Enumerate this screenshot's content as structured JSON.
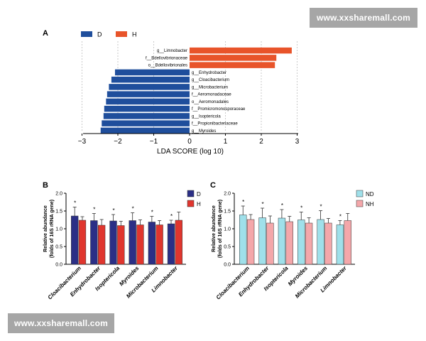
{
  "watermark_top": "www.xxsharemall.com",
  "watermark_bottom": "www.xxsharemall.com",
  "colors": {
    "D": "#1f4e9c",
    "H": "#e8542a",
    "Dbar": "#2b2f86",
    "Hbar": "#e0362e",
    "ND": "#9fe0ea",
    "NH": "#f4a7aa"
  },
  "chart_data": [
    {
      "panel": "A",
      "type": "bar",
      "orientation": "horizontal",
      "legend": [
        "D",
        "H"
      ],
      "xlabel": "LDA SCORE (log 10)",
      "xlim": [
        -3,
        3
      ],
      "xticks": [
        "−3",
        "−2",
        "−1",
        "0",
        "1",
        "2",
        "3"
      ],
      "categories": [
        "g__Limnobacter",
        "f__Bdellovibrionaceae",
        "o__Bdellovibrionales",
        "g__Enhydrobacter",
        "g__Cloacibacterium",
        "g__Microbacterium",
        "f__Aeromonadaceae",
        "o__Aeromonadales",
        "f__Promicromonosporaceae",
        "g__Isoptericola",
        "f__Propionibacteriaceae",
        "g__Myroides"
      ],
      "values": [
        2.85,
        2.42,
        2.38,
        -2.08,
        -2.18,
        -2.25,
        -2.3,
        -2.33,
        -2.38,
        -2.4,
        -2.45,
        -2.48
      ],
      "groups": [
        "H",
        "H",
        "H",
        "D",
        "D",
        "D",
        "D",
        "D",
        "D",
        "D",
        "D",
        "D"
      ]
    },
    {
      "panel": "B",
      "type": "bar",
      "ylabel_line1": "Relative abundance",
      "ylabel_line2": "(folds of 16S rRNA gene)",
      "ylim": [
        0,
        2.0
      ],
      "yticks": [
        "0.0",
        "0.5",
        "1.0",
        "1.5",
        "2.0"
      ],
      "categories": [
        "Cloacibacterium",
        "Enhydrobacter",
        "Isoptericola",
        "Myroides",
        "Microbacterium",
        "Limnobacter"
      ],
      "series": [
        {
          "name": "D",
          "values": [
            1.36,
            1.23,
            1.22,
            1.23,
            1.19,
            1.14
          ],
          "errors": [
            0.25,
            0.2,
            0.18,
            0.22,
            0.16,
            0.1
          ]
        },
        {
          "name": "H",
          "values": [
            1.24,
            1.1,
            1.09,
            1.11,
            1.11,
            1.24
          ],
          "errors": [
            0.1,
            0.16,
            0.12,
            0.14,
            0.12,
            0.23
          ]
        }
      ],
      "significance": [
        "*",
        "*",
        "*",
        "*",
        "*",
        "*"
      ]
    },
    {
      "panel": "C",
      "type": "bar",
      "ylabel_line1": "Relative abundance",
      "ylabel_line2": "(folds of 16S rRNA gene)",
      "ylim": [
        0,
        2.0
      ],
      "yticks": [
        "0.0",
        "0.5",
        "1.0",
        "1.5",
        "2.0"
      ],
      "categories": [
        "Cloacibacterium",
        "Enhydrobacter",
        "Isoptericola",
        "Myroides",
        "Microbacterium",
        "Limnobacter"
      ],
      "series": [
        {
          "name": "ND",
          "values": [
            1.39,
            1.31,
            1.3,
            1.25,
            1.26,
            1.11
          ],
          "errors": [
            0.25,
            0.27,
            0.24,
            0.22,
            0.25,
            0.12
          ]
        },
        {
          "name": "NH",
          "values": [
            1.26,
            1.16,
            1.2,
            1.16,
            1.16,
            1.23
          ],
          "errors": [
            0.14,
            0.2,
            0.15,
            0.15,
            0.13,
            0.2
          ]
        }
      ],
      "significance": [
        "*",
        "*",
        "*",
        "*",
        "*",
        "*"
      ]
    }
  ]
}
